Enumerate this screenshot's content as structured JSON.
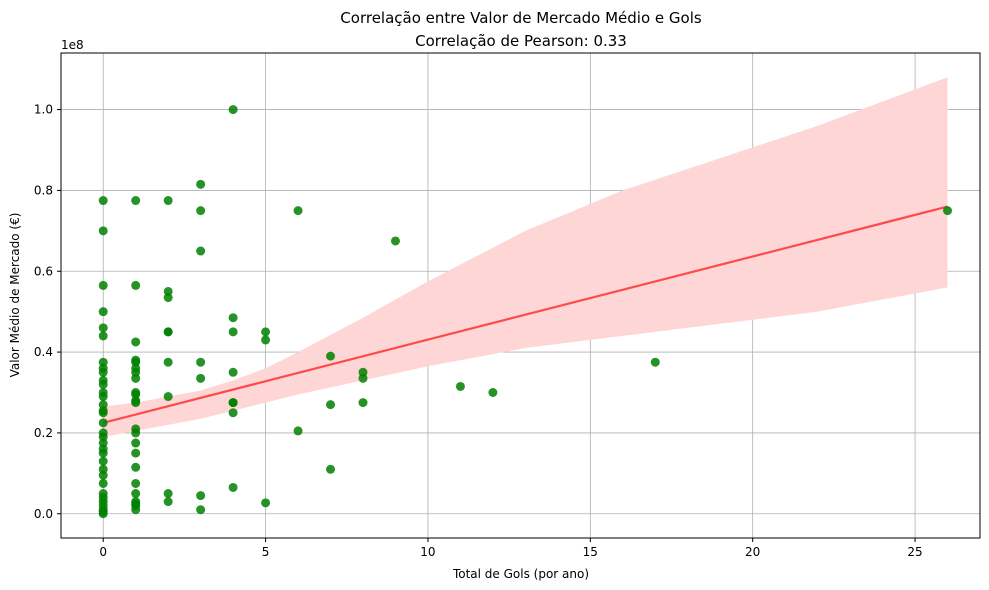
{
  "chart_data": {
    "type": "scatter",
    "title": "Correlação entre Valor de Mercado Médio e Gols",
    "subtitle": "Correlação de Pearson: 0.33",
    "xlabel": "Total de Gols (por ano)",
    "ylabel": "Valor Médio de Mercado (€)",
    "y_offset_label": "1e8",
    "xlim": [
      -1.3,
      27.0
    ],
    "ylim": [
      -0.06,
      1.14
    ],
    "x_ticks": [
      0,
      5,
      10,
      15,
      20,
      25
    ],
    "x_tick_labels": [
      "0",
      "5",
      "10",
      "15",
      "20",
      "25"
    ],
    "y_ticks": [
      0.0,
      0.2,
      0.4,
      0.6,
      0.8,
      1.0
    ],
    "y_tick_labels": [
      "0.0",
      "0.2",
      "0.4",
      "0.6",
      "0.8",
      "1.0"
    ],
    "grid": true,
    "colors": {
      "points": "#008000",
      "regression_line": "#ff3b3b",
      "confidence_band": "#ffd6d6",
      "grid": "#b0b0b0"
    },
    "points": [
      [
        0,
        0.775
      ],
      [
        0,
        0.7
      ],
      [
        0,
        0.565
      ],
      [
        0,
        0.5
      ],
      [
        0,
        0.46
      ],
      [
        0,
        0.44
      ],
      [
        0,
        0.375
      ],
      [
        0,
        0.36
      ],
      [
        0,
        0.35
      ],
      [
        0,
        0.33
      ],
      [
        0,
        0.32
      ],
      [
        0,
        0.3
      ],
      [
        0,
        0.29
      ],
      [
        0,
        0.27
      ],
      [
        0,
        0.255
      ],
      [
        0,
        0.25
      ],
      [
        0,
        0.225
      ],
      [
        0,
        0.2
      ],
      [
        0,
        0.19
      ],
      [
        0,
        0.175
      ],
      [
        0,
        0.16
      ],
      [
        0,
        0.15
      ],
      [
        0,
        0.13
      ],
      [
        0,
        0.11
      ],
      [
        0,
        0.095
      ],
      [
        0,
        0.075
      ],
      [
        0,
        0.05
      ],
      [
        0,
        0.04
      ],
      [
        0,
        0.03
      ],
      [
        0,
        0.02
      ],
      [
        0,
        0.01
      ],
      [
        0,
        0.005
      ],
      [
        0,
        0.0
      ],
      [
        1,
        0.775
      ],
      [
        1,
        0.565
      ],
      [
        1,
        0.425
      ],
      [
        1,
        0.38
      ],
      [
        1,
        0.375
      ],
      [
        1,
        0.36
      ],
      [
        1,
        0.35
      ],
      [
        1,
        0.335
      ],
      [
        1,
        0.3
      ],
      [
        1,
        0.295
      ],
      [
        1,
        0.28
      ],
      [
        1,
        0.275
      ],
      [
        1,
        0.21
      ],
      [
        1,
        0.2
      ],
      [
        1,
        0.175
      ],
      [
        1,
        0.15
      ],
      [
        1,
        0.115
      ],
      [
        1,
        0.075
      ],
      [
        1,
        0.05
      ],
      [
        1,
        0.03
      ],
      [
        1,
        0.025
      ],
      [
        1,
        0.02
      ],
      [
        1,
        0.01
      ],
      [
        2,
        0.775
      ],
      [
        2,
        0.55
      ],
      [
        2,
        0.535
      ],
      [
        2,
        0.45
      ],
      [
        2,
        0.45
      ],
      [
        2,
        0.375
      ],
      [
        2,
        0.29
      ],
      [
        2,
        0.05
      ],
      [
        2,
        0.03
      ],
      [
        3,
        0.815
      ],
      [
        3,
        0.75
      ],
      [
        3,
        0.65
      ],
      [
        3,
        0.375
      ],
      [
        3,
        0.335
      ],
      [
        3,
        0.045
      ],
      [
        3,
        0.01
      ],
      [
        4,
        1.0
      ],
      [
        4,
        0.485
      ],
      [
        4,
        0.45
      ],
      [
        4,
        0.35
      ],
      [
        4,
        0.275
      ],
      [
        4,
        0.275
      ],
      [
        4,
        0.25
      ],
      [
        4,
        0.065
      ],
      [
        5,
        0.45
      ],
      [
        5,
        0.43
      ],
      [
        5,
        0.027
      ],
      [
        6,
        0.75
      ],
      [
        6,
        0.205
      ],
      [
        7,
        0.39
      ],
      [
        7,
        0.27
      ],
      [
        7,
        0.11
      ],
      [
        8,
        0.35
      ],
      [
        8,
        0.335
      ],
      [
        8,
        0.275
      ],
      [
        9,
        0.675
      ],
      [
        11,
        0.315
      ],
      [
        12,
        0.3
      ],
      [
        17,
        0.375
      ],
      [
        26,
        0.75
      ]
    ],
    "regression": {
      "x": [
        0,
        26
      ],
      "y": [
        0.225,
        0.76
      ]
    },
    "confidence_band": {
      "x": [
        0,
        1,
        2,
        3,
        4,
        5,
        6,
        8,
        10,
        13,
        16,
        19,
        22,
        26
      ],
      "upper": [
        0.265,
        0.275,
        0.29,
        0.305,
        0.33,
        0.36,
        0.4,
        0.485,
        0.575,
        0.7,
        0.8,
        0.88,
        0.96,
        1.08
      ],
      "lower": [
        0.19,
        0.205,
        0.22,
        0.235,
        0.255,
        0.275,
        0.295,
        0.33,
        0.365,
        0.41,
        0.44,
        0.47,
        0.5,
        0.56
      ]
    }
  }
}
